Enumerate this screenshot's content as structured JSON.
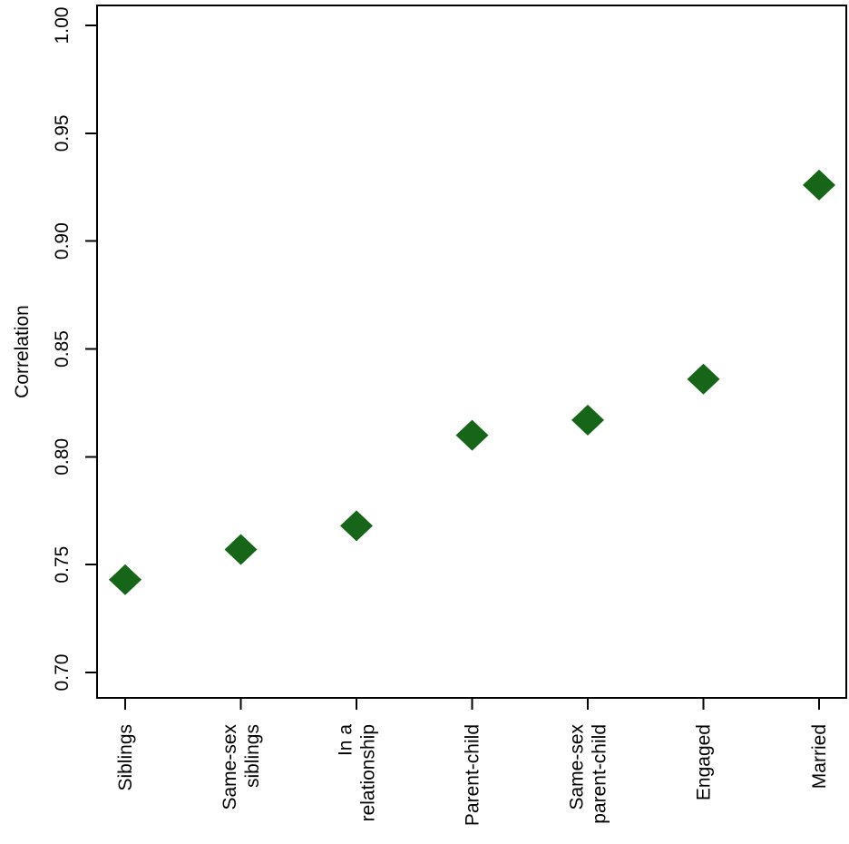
{
  "chart_data": {
    "type": "scatter",
    "title": "",
    "xlabel": "",
    "ylabel": "Correlation",
    "categories": [
      "Siblings",
      "Same-sex\nsiblings",
      "In a\nrelationship",
      "Parent-child",
      "Same-sex\nparent-child",
      "Engaged",
      "Married"
    ],
    "values": [
      0.743,
      0.757,
      0.768,
      0.81,
      0.817,
      0.836,
      0.926
    ],
    "ylim": [
      0.7,
      1.0
    ],
    "yticks": [
      0.7,
      0.75,
      0.8,
      0.85,
      0.9,
      0.95,
      1.0
    ],
    "ytick_labels": [
      "0.70",
      "0.75",
      "0.80",
      "0.85",
      "0.90",
      "0.95",
      "1.00"
    ],
    "grid": false,
    "legend": "none",
    "marker": "filled-diamond",
    "marker_color": "#166518",
    "axis_color": "#000000",
    "background": "#ffffff",
    "x_labels_rotation_deg": -90,
    "y_labels_rotation_deg": -90
  }
}
